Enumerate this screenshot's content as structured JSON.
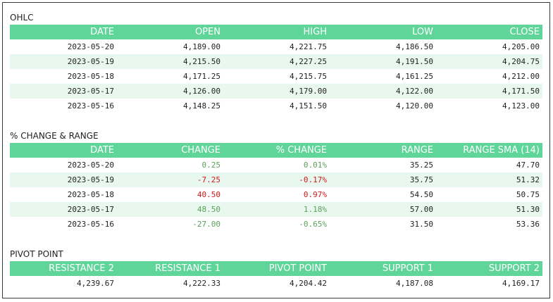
{
  "ohlc": {
    "title": "OHLC",
    "headers": [
      "DATE",
      "OPEN",
      "HIGH",
      "LOW",
      "CLOSE"
    ],
    "rows": [
      [
        "2023-05-20",
        "4,189.00",
        "4,221.75",
        "4,186.50",
        "4,205.00"
      ],
      [
        "2023-05-19",
        "4,215.50",
        "4,227.25",
        "4,191.50",
        "4,204.75"
      ],
      [
        "2023-05-18",
        "4,171.25",
        "4,215.75",
        "4,161.25",
        "4,212.00"
      ],
      [
        "2023-05-17",
        "4,126.00",
        "4,179.00",
        "4,122.00",
        "4,171.50"
      ],
      [
        "2023-05-16",
        "4,148.25",
        "4,151.50",
        "4,120.00",
        "4,123.00"
      ]
    ]
  },
  "change": {
    "title": "% CHANGE & RANGE",
    "headers": [
      "DATE",
      "CHANGE",
      "% CHANGE",
      "RANGE",
      "RANGE SMA (14)"
    ],
    "rows": [
      [
        "2023-05-20",
        "0.25",
        "0.01%",
        "35.25",
        "47.70"
      ],
      [
        "2023-05-19",
        "-7.25",
        "-0.17%",
        "35.75",
        "51.32"
      ],
      [
        "2023-05-18",
        "40.50",
        "0.97%",
        "54.50",
        "50.75"
      ],
      [
        "2023-05-17",
        "48.50",
        "1.18%",
        "57.00",
        "51.30"
      ],
      [
        "2023-05-16",
        "-27.00",
        "-0.65%",
        "31.50",
        "53.36"
      ]
    ],
    "colors": {
      "positive": "#5b9f5b",
      "negative": "#d11a1a"
    }
  },
  "pivot": {
    "title": "PIVOT POINT",
    "headers": [
      "RESISTANCE 2",
      "RESISTANCE 1",
      "PIVOT POINT",
      "SUPPORT 1",
      "SUPPORT 2"
    ],
    "values": [
      "4,239.67",
      "4,222.33",
      "4,204.42",
      "4,187.08",
      "4,169.17"
    ]
  },
  "colors": {
    "header_bg": "#5fd59a",
    "alt_row_bg": "#e9f8ef"
  }
}
